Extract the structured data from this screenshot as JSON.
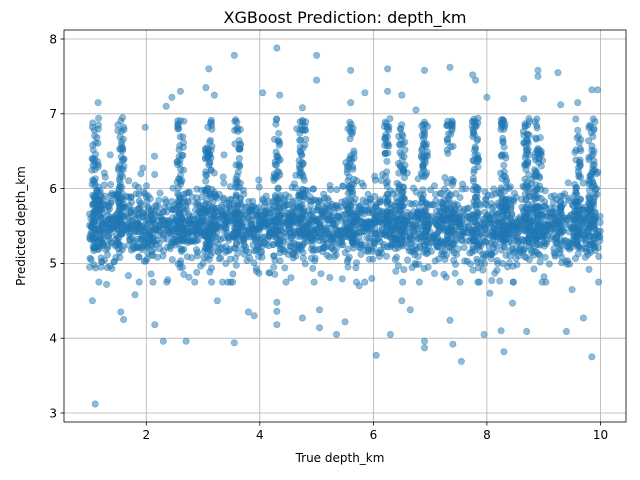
{
  "chart_data": {
    "type": "scatter",
    "title": "XGBoost Prediction: depth_km",
    "xlabel": "True depth_km",
    "ylabel": "Predicted depth_km",
    "xlim": [
      0.55,
      10.45
    ],
    "ylim": [
      2.88,
      8.12
    ],
    "xticks": [
      2,
      4,
      6,
      8,
      10
    ],
    "yticks": [
      3,
      4,
      5,
      6,
      7,
      8
    ],
    "grid": true,
    "marker_color": "#1f77b4",
    "marker_alpha": 0.5,
    "series": [
      {
        "points": [
          [
            1.1,
            3.12
          ],
          [
            1.05,
            4.5
          ],
          [
            1.2,
            4.95
          ],
          [
            1.55,
            4.35
          ],
          [
            1.6,
            4.25
          ],
          [
            1.15,
            7.15
          ],
          [
            1.5,
            6.85
          ],
          [
            1.98,
            6.82
          ],
          [
            2.15,
            4.18
          ],
          [
            2.3,
            3.96
          ],
          [
            2.7,
            3.96
          ],
          [
            2.6,
            7.3
          ],
          [
            2.35,
            7.1
          ],
          [
            2.45,
            7.22
          ],
          [
            3.1,
            7.6
          ],
          [
            3.05,
            7.35
          ],
          [
            3.2,
            7.25
          ],
          [
            3.55,
            7.78
          ],
          [
            3.55,
            3.94
          ],
          [
            3.8,
            4.35
          ],
          [
            3.9,
            4.3
          ],
          [
            4.05,
            7.28
          ],
          [
            4.3,
            7.88
          ],
          [
            4.35,
            7.25
          ],
          [
            4.3,
            4.18
          ],
          [
            4.3,
            4.36
          ],
          [
            4.3,
            4.48
          ],
          [
            4.75,
            4.27
          ],
          [
            4.75,
            7.08
          ],
          [
            5.0,
            7.78
          ],
          [
            5.0,
            7.45
          ],
          [
            5.05,
            4.38
          ],
          [
            5.05,
            4.14
          ],
          [
            5.35,
            4.05
          ],
          [
            5.5,
            4.22
          ],
          [
            5.6,
            7.58
          ],
          [
            5.6,
            7.15
          ],
          [
            5.85,
            7.28
          ],
          [
            6.05,
            3.77
          ],
          [
            6.25,
            7.6
          ],
          [
            6.25,
            7.3
          ],
          [
            6.3,
            4.05
          ],
          [
            6.5,
            7.25
          ],
          [
            6.5,
            4.5
          ],
          [
            6.65,
            4.38
          ],
          [
            6.9,
            7.58
          ],
          [
            6.9,
            3.96
          ],
          [
            6.9,
            3.87
          ],
          [
            7.35,
            7.62
          ],
          [
            7.35,
            4.24
          ],
          [
            7.4,
            3.92
          ],
          [
            7.55,
            3.69
          ],
          [
            7.75,
            7.52
          ],
          [
            7.8,
            7.45
          ],
          [
            7.95,
            4.05
          ],
          [
            8.0,
            7.22
          ],
          [
            8.25,
            4.1
          ],
          [
            8.3,
            3.82
          ],
          [
            8.45,
            4.47
          ],
          [
            8.7,
            4.09
          ],
          [
            8.9,
            7.58
          ],
          [
            8.9,
            7.5
          ],
          [
            9.25,
            7.55
          ],
          [
            9.4,
            4.09
          ],
          [
            9.3,
            7.12
          ],
          [
            9.85,
            3.75
          ],
          [
            9.85,
            7.32
          ],
          [
            9.95,
            7.32
          ],
          [
            9.6,
            7.15
          ],
          [
            9.7,
            4.27
          ],
          [
            9.5,
            4.65
          ],
          [
            8.05,
            4.6
          ],
          [
            3.25,
            4.5
          ],
          [
            1.3,
            4.72
          ],
          [
            1.8,
            4.58
          ],
          [
            5.75,
            4.7
          ],
          [
            6.75,
            7.05
          ],
          [
            8.65,
            7.2
          ],
          [
            4.65,
            6.8
          ]
        ]
      }
    ]
  }
}
